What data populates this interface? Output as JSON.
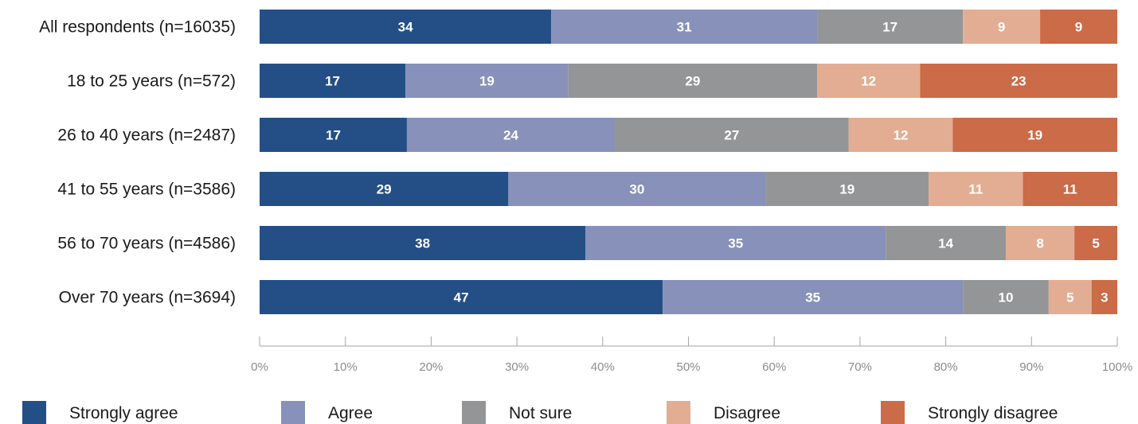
{
  "chart_data": {
    "type": "bar",
    "orientation": "horizontal",
    "stacked": true,
    "categories": [
      "All respondents (n=16035)",
      "18 to 25 years (n=572)",
      "26 to 40 years (n=2487)",
      "41 to 55 years (n=3586)",
      "56 to 70 years (n=4586)",
      "Over 70 years (n=3694)"
    ],
    "series": [
      {
        "name": "Strongly agree",
        "color": "#234f86",
        "values": [
          34,
          17,
          17,
          29,
          38,
          47
        ]
      },
      {
        "name": "Agree",
        "color": "#8791b9",
        "values": [
          31,
          19,
          24,
          30,
          35,
          35
        ]
      },
      {
        "name": "Not sure",
        "color": "#949597",
        "values": [
          17,
          29,
          27,
          19,
          14,
          10
        ]
      },
      {
        "name": "Disagree",
        "color": "#e2ad92",
        "values": [
          9,
          12,
          12,
          11,
          8,
          5
        ]
      },
      {
        "name": "Strongly disagree",
        "color": "#cb6b48",
        "values": [
          9,
          23,
          19,
          11,
          5,
          3
        ]
      }
    ],
    "xlim": [
      0,
      100
    ],
    "xticks": [
      "0%",
      "10%",
      "20%",
      "30%",
      "40%",
      "50%",
      "60%",
      "70%",
      "80%",
      "90%",
      "100%"
    ],
    "grid": false,
    "legend_position": "bottom",
    "title": "",
    "xlabel": "",
    "ylabel": ""
  }
}
